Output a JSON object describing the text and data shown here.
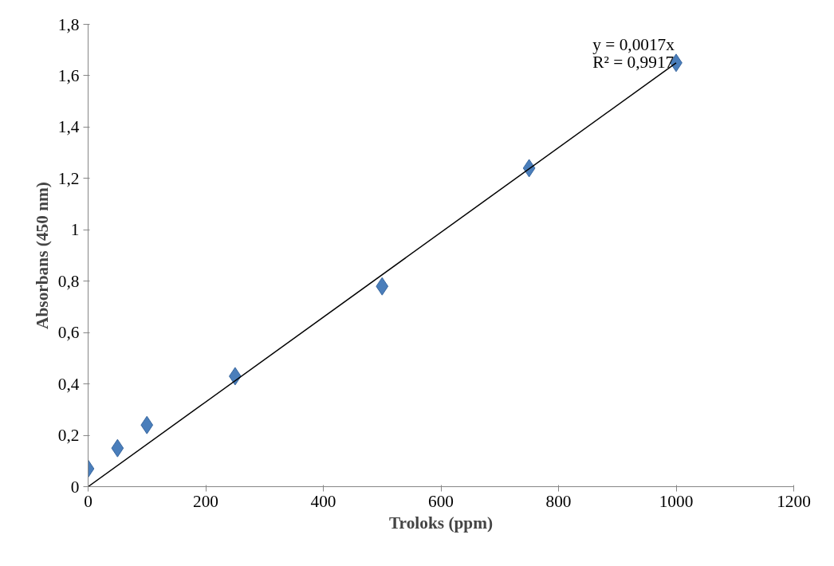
{
  "chart_data": {
    "type": "scatter",
    "xlabel": "Troloks (ppm)",
    "ylabel": "Absorbans (450 nm)",
    "xlim": [
      0,
      1200
    ],
    "xticks": [
      0,
      200,
      400,
      600,
      800,
      1000,
      1200
    ],
    "ylim": [
      0,
      1.8
    ],
    "yticks": [
      0,
      {
        "value": 0.2,
        "label": "0,2"
      },
      {
        "value": 0.4,
        "label": "0,4"
      },
      {
        "value": 0.6,
        "label": "0,6"
      },
      {
        "value": 0.8,
        "label": "0,8"
      },
      1,
      {
        "value": 1.2,
        "label": "1,2"
      },
      {
        "value": 1.4,
        "label": "1,4"
      },
      {
        "value": 1.6,
        "label": "1,6"
      },
      {
        "value": 1.8,
        "label": "1,8"
      }
    ],
    "grid": false,
    "series": [
      {
        "marker": "diamond",
        "color": "#4a7ebb",
        "x": [
          0,
          50,
          100,
          250,
          500,
          750,
          1000
        ],
        "values": [
          0.07,
          0.15,
          0.24,
          0.43,
          0.78,
          1.24,
          1.65
        ]
      },
      {
        "type": "line",
        "marker": "none",
        "color": "#000000",
        "x": [
          0,
          1000
        ],
        "values": [
          0,
          1.65
        ],
        "line_style": "solid"
      }
    ],
    "annotations": [
      "y = 0,0017x",
      "R² = 0,9917"
    ]
  }
}
